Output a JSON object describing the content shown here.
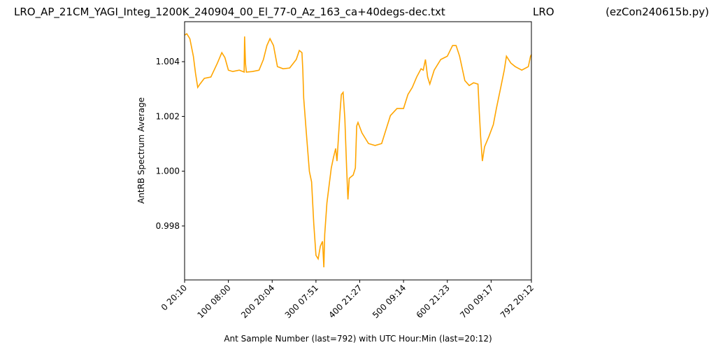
{
  "chart_data": {
    "type": "line",
    "title": "LRO_AP_21CM_YAGI_Integ_1200K_240904_00_El_77-0_Az_163_ca+40degs-dec.txt",
    "title_center": "LRO",
    "title_right": "(ezCon240615b.py)",
    "x_label": "Ant Sample Number (last=792) with UTC Hour:Min (last=20:12)",
    "y_label": "AntRB Spectrum Average",
    "xlim": [
      0,
      792
    ],
    "ylim": [
      0.99603,
      1.00546
    ],
    "xticks": [
      {
        "value": 0,
        "label": "0  20:10"
      },
      {
        "value": 100,
        "label": "100  08:00"
      },
      {
        "value": 200,
        "label": "200  20:04"
      },
      {
        "value": 300,
        "label": "300  07:51"
      },
      {
        "value": 400,
        "label": "400  21:27"
      },
      {
        "value": 500,
        "label": "500  09:14"
      },
      {
        "value": 600,
        "label": "600  21:23"
      },
      {
        "value": 700,
        "label": "700  09:17"
      },
      {
        "value": 792,
        "label": "792  20:12"
      }
    ],
    "yticks": [
      0.998,
      {
        "value": 1.0,
        "label": "1.000"
      },
      1.002,
      1.004
    ],
    "grid": false,
    "series": [
      {
        "color": "#ffa500",
        "x": [
          0,
          5,
          12,
          20,
          25,
          30,
          35,
          45,
          60,
          75,
          85,
          92,
          100,
          110,
          125,
          136,
          137,
          139,
          141,
          155,
          170,
          180,
          188,
          195,
          203,
          212,
          225,
          240,
          255,
          262,
          268,
          270,
          272,
          278,
          285,
          290,
          295,
          300,
          305,
          310,
          315,
          318,
          320,
          325,
          330,
          335,
          340,
          345,
          348,
          352,
          355,
          358,
          362,
          366,
          370,
          373,
          376,
          385,
          390,
          393,
          396,
          405,
          420,
          435,
          450,
          460,
          470,
          485,
          500,
          510,
          520,
          530,
          540,
          545,
          550,
          555,
          560,
          570,
          585,
          600,
          612,
          620,
          628,
          640,
          650,
          660,
          670,
          673,
          676,
          680,
          685,
          695,
          705,
          712,
          722,
          730,
          735,
          745,
          755,
          770,
          785,
          790,
          792
        ],
        "values": [
          1.00497,
          1.00502,
          1.00484,
          1.0042,
          1.00357,
          1.00306,
          1.00318,
          1.00339,
          1.00344,
          1.00395,
          1.00433,
          1.00415,
          1.00369,
          1.00364,
          1.00369,
          1.00362,
          1.00492,
          1.00395,
          1.00362,
          1.00364,
          1.00369,
          1.00408,
          1.00459,
          1.00484,
          1.00459,
          1.00382,
          1.00374,
          1.00377,
          1.00408,
          1.00441,
          1.00433,
          1.00369,
          1.00267,
          1.0014,
          0.99999,
          0.99961,
          0.99808,
          0.99693,
          0.9968,
          0.99726,
          0.99744,
          0.99649,
          0.99769,
          0.99884,
          0.99948,
          1.00012,
          1.0005,
          1.00083,
          1.00037,
          1.0014,
          1.00216,
          1.0028,
          1.00288,
          1.00191,
          1.00012,
          0.99897,
          0.99974,
          0.99986,
          1.00012,
          1.00165,
          1.00178,
          1.0014,
          1.00101,
          1.00094,
          1.00101,
          1.00152,
          1.00203,
          1.00229,
          1.00229,
          1.0028,
          1.00306,
          1.00344,
          1.00374,
          1.00369,
          1.00408,
          1.00344,
          1.00318,
          1.00369,
          1.00408,
          1.0042,
          1.00459,
          1.00459,
          1.0042,
          1.00331,
          1.00313,
          1.00323,
          1.00318,
          1.00216,
          1.00127,
          1.00037,
          1.00089,
          1.00127,
          1.0017,
          1.00229,
          1.00306,
          1.00369,
          1.0042,
          1.00395,
          1.00382,
          1.00369,
          1.00382,
          1.0042,
          1.00426
        ]
      }
    ]
  }
}
